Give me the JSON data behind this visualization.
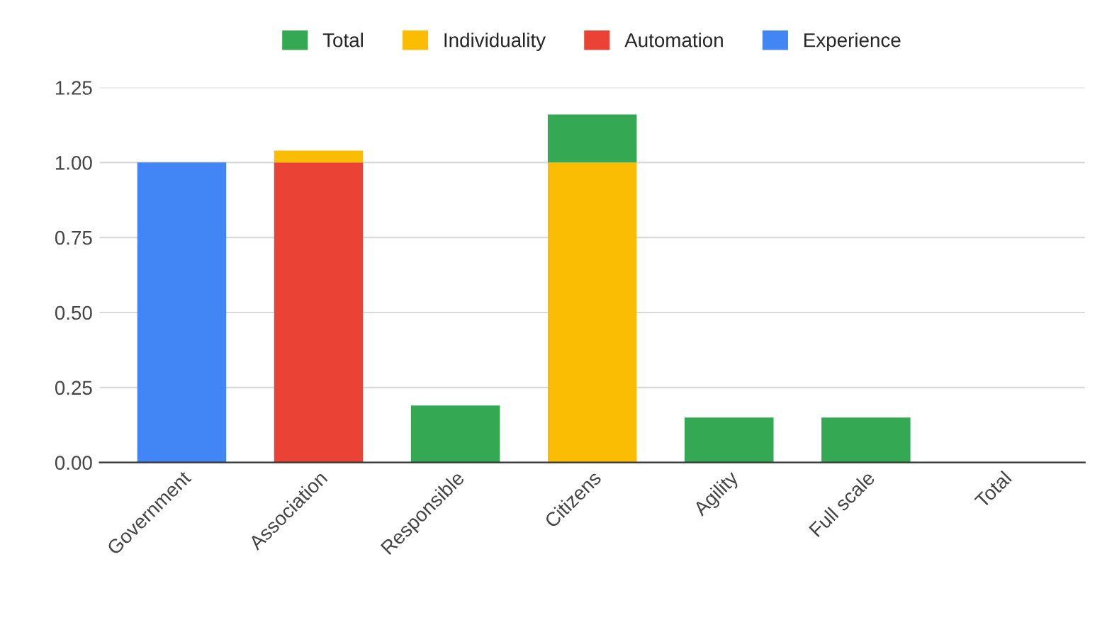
{
  "chart_data": {
    "type": "bar",
    "stacked": true,
    "categories": [
      "Government",
      "Association",
      "Responsible",
      "Citizens",
      "Agility",
      "Full scale",
      "Total"
    ],
    "series": [
      {
        "name": "Experience",
        "color": "#4285f4",
        "values": [
          1.0,
          null,
          null,
          null,
          null,
          null,
          null
        ]
      },
      {
        "name": "Automation",
        "color": "#ea4335",
        "values": [
          null,
          1.0,
          null,
          null,
          null,
          null,
          null
        ]
      },
      {
        "name": "Individuality",
        "color": "#fbbc04",
        "values": [
          null,
          0.04,
          null,
          1.0,
          null,
          null,
          null
        ]
      },
      {
        "name": "Total",
        "color": "#34a853",
        "values": [
          0,
          0,
          0.19,
          0.16,
          0.15,
          0.15,
          0
        ]
      }
    ],
    "ylim": [
      0,
      1.25
    ],
    "yticks": [
      {
        "value": 0,
        "label": "0.00"
      },
      {
        "value": 0.25,
        "label": "0.25"
      },
      {
        "value": 0.5,
        "label": "0.50"
      },
      {
        "value": 0.75,
        "label": "0.75"
      },
      {
        "value": 1.0,
        "label": "1.00"
      },
      {
        "value": 1.25,
        "label": "1.25"
      }
    ],
    "grid": "y",
    "legend": "top"
  }
}
